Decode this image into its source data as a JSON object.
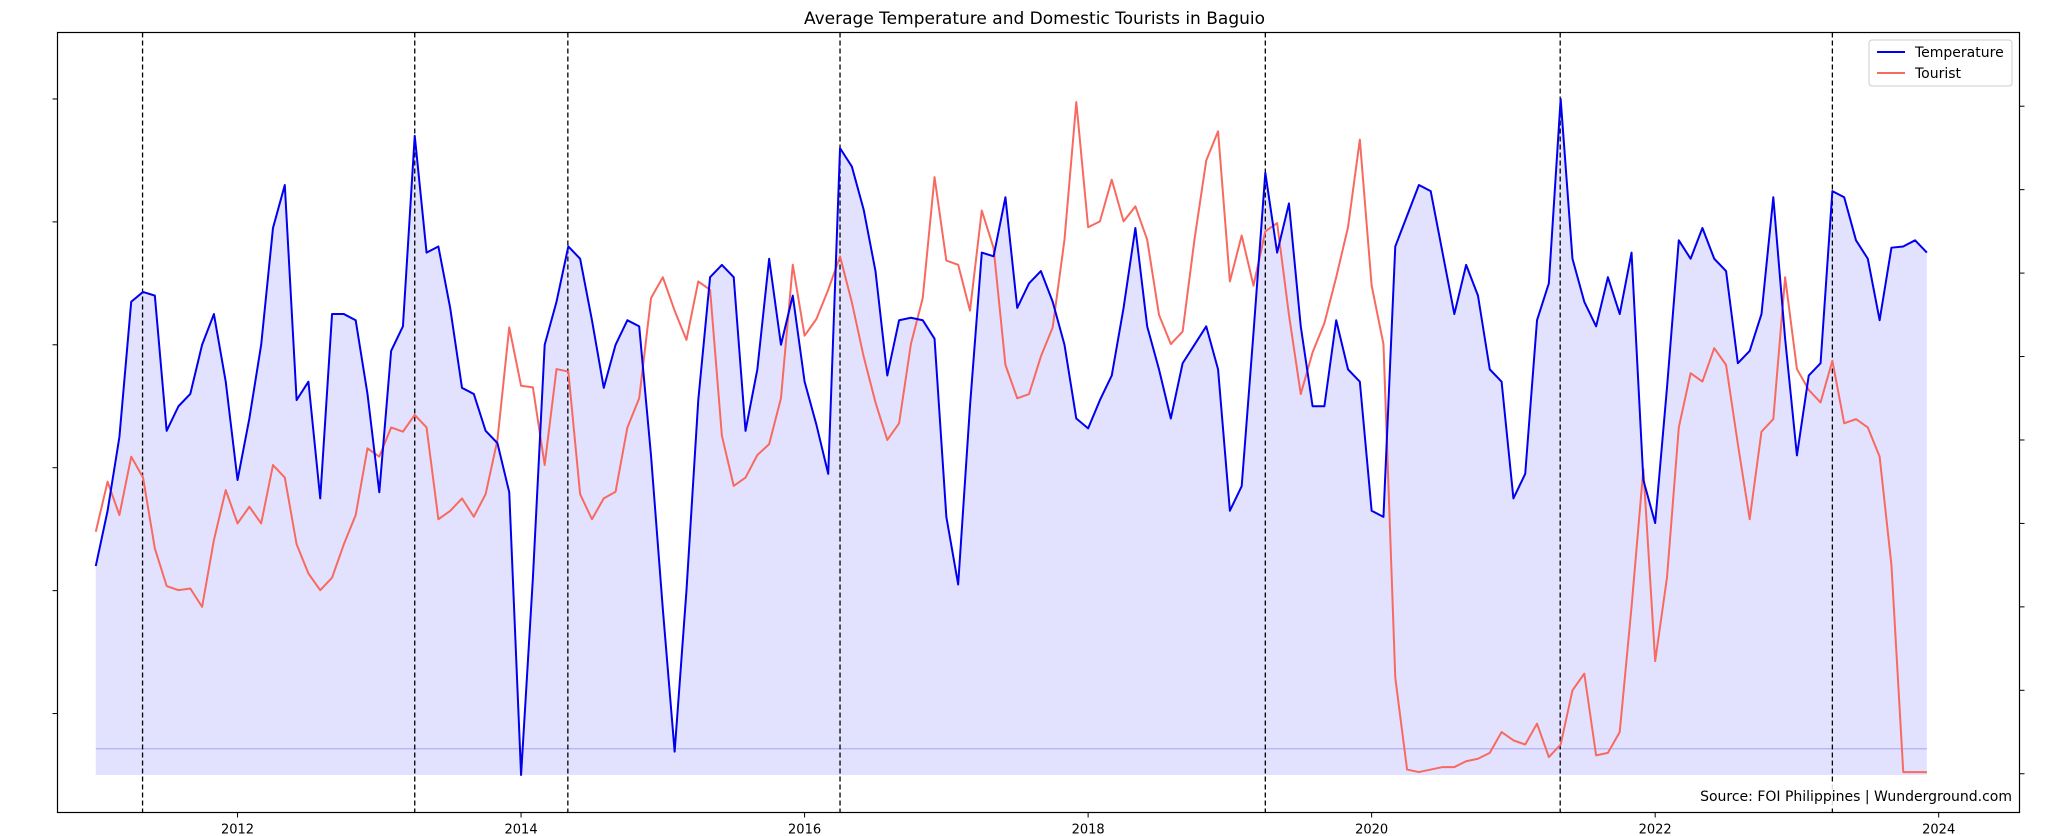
{
  "chart_data": {
    "type": "line",
    "title": "Average Temperature and Domestic Tourists in Baguio",
    "xlabel": "",
    "ylabel": "",
    "x_ticks": [
      "2012",
      "2014",
      "2016",
      "2018",
      "2020",
      "2022",
      "2024"
    ],
    "xlim": [
      2010.73,
      2024.57
    ],
    "temperature_ylim": [
      0,
      57.6
    ],
    "tourist_ylim": [
      -3.15,
      81.7
    ],
    "grid": false,
    "legend_position": "top-right",
    "annotation": "Source: FOI Philippines | Wunderground.com",
    "start_year": 2011,
    "vertical_lines": [
      2011.33,
      2013.25,
      2014.33,
      2016.25,
      2019.25,
      2021.33,
      2023.25
    ],
    "series": [
      {
        "name": "Temperature",
        "color": "#0000ee",
        "fill": "#e2e2ff",
        "values": [
          17,
          21.5,
          27.5,
          38.5,
          39.3,
          39,
          28,
          30,
          31,
          35,
          37.5,
          32,
          24,
          29,
          35,
          44.5,
          48,
          30.5,
          32,
          22.5,
          37.5,
          37.5,
          37,
          31,
          23,
          34.5,
          36.5,
          52,
          42.5,
          43,
          38,
          31.5,
          31,
          28,
          27,
          23,
          0,
          16,
          35,
          38.5,
          43,
          42,
          37,
          31.5,
          35,
          37,
          36.5,
          26,
          13.5,
          1.9,
          15,
          30.5,
          40.5,
          41.5,
          40.5,
          28,
          33,
          42,
          35,
          39,
          32,
          28.5,
          24.5,
          51,
          49.5,
          46,
          41,
          32.5,
          37,
          37.2,
          37,
          35.5,
          21,
          15.5,
          30,
          42.5,
          42.2,
          47,
          38,
          40,
          41,
          38.5,
          35,
          29,
          28.2,
          30.5,
          32.5,
          38,
          44.5,
          36.5,
          33,
          29,
          33.5,
          35,
          36.5,
          33,
          21.5,
          23.5,
          36,
          49,
          42.5,
          46.5,
          36.5,
          30,
          30,
          37,
          33,
          32,
          21.5,
          21,
          43,
          45.5,
          48,
          47.5,
          42.5,
          37.5,
          41.5,
          39,
          33,
          32,
          22.5,
          24.5,
          37,
          40,
          55,
          42,
          38.5,
          36.5,
          40.5,
          37.5,
          42.5,
          24,
          20.5,
          31.5,
          43.5,
          42,
          44.5,
          42,
          41,
          33.5,
          34.5,
          37.5,
          47,
          35.5,
          26,
          32.5,
          33.5,
          47.5,
          47,
          43.5,
          42,
          37,
          42.9,
          43,
          43.5,
          42.5
        ]
      },
      {
        "name": "Tourist",
        "color": "#f86a60",
        "values": [
          26,
          32,
          28,
          35,
          32.5,
          24,
          19.5,
          19,
          19.2,
          17,
          25,
          31,
          27,
          29,
          27,
          34,
          32.5,
          24.5,
          21,
          19,
          20.5,
          24.5,
          28,
          36,
          35,
          38.5,
          38,
          40,
          38.5,
          27.5,
          28.5,
          30,
          27.8,
          30.5,
          37,
          50.5,
          43.5,
          43.3,
          34,
          45.5,
          45.2,
          30.5,
          27.5,
          30,
          30.8,
          38.5,
          42,
          54,
          56.5,
          52.5,
          49,
          56,
          55,
          37.5,
          31.5,
          32.5,
          35.2,
          36.5,
          42,
          58,
          49.5,
          51.5,
          55,
          59,
          53.5,
          47,
          41.5,
          37,
          39,
          48.5,
          54,
          68.5,
          58.5,
          58,
          52.5,
          64.5,
          60,
          46,
          42,
          42.5,
          47,
          50.5,
          61,
          77.5,
          62.5,
          63.2,
          68.2,
          63.2,
          65,
          61,
          52,
          48.5,
          50,
          61,
          70.5,
          74,
          56,
          61.5,
          55.5,
          62,
          63,
          52,
          42.5,
          47.5,
          51,
          56.5,
          62.5,
          73,
          55.5,
          48.5,
          8.5,
          -2.5,
          -2.8,
          -2.5,
          -2.2,
          -2.2,
          -1.5,
          -1.2,
          -0.5,
          2,
          1,
          0.5,
          3,
          -1,
          0.5,
          7,
          9,
          -0.8,
          -0.5,
          2,
          17,
          33.5,
          10.5,
          20.5,
          38.5,
          45,
          44,
          48,
          46,
          36.5,
          27.5,
          38,
          39.5,
          56.5,
          45.5,
          43,
          41.5,
          46.5,
          39,
          39.5,
          38.5,
          35,
          22,
          -2.8,
          -2.8,
          -2.8
        ]
      }
    ]
  }
}
